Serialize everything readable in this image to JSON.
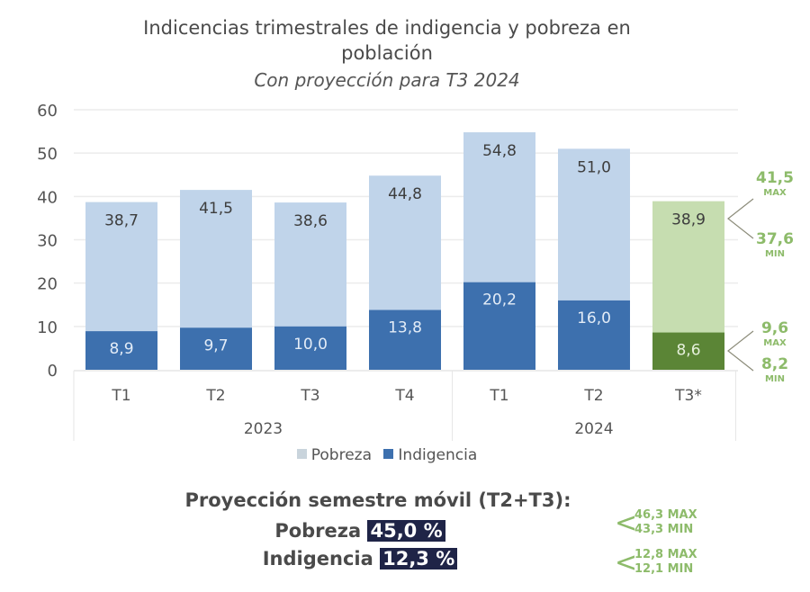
{
  "title": {
    "line1": "Indicencias trimestrales de indigencia y pobreza en",
    "line2": "población",
    "subtitle": "Con proyección para T3 2024"
  },
  "colors": {
    "pobreza": "#c0d4ea",
    "indigencia": "#3d70ae",
    "pobreza_projection": "#c6ddb0",
    "indigencia_projection": "#5b8536",
    "range_text": "#8dbb6a",
    "highlight_bg": "#1f2447"
  },
  "chart_data": {
    "type": "bar",
    "title": "Indicencias trimestrales de indigencia y pobreza en población",
    "subtitle": "Con proyección para T3 2024",
    "xlabel": "",
    "ylabel": "",
    "ylim": [
      0,
      60
    ],
    "yticks": [
      0,
      10,
      20,
      30,
      40,
      50,
      60
    ],
    "grid": true,
    "legend_position": "bottom",
    "categories": [
      "T1",
      "T2",
      "T3",
      "T4",
      "T1",
      "T2",
      "T3*"
    ],
    "groups": [
      {
        "label": "2023",
        "count": 4
      },
      {
        "label": "2024",
        "count": 3
      }
    ],
    "series": [
      {
        "name": "Pobreza",
        "values": [
          38.7,
          41.5,
          38.6,
          44.8,
          54.8,
          51.0,
          38.9
        ],
        "labels": [
          "38,7",
          "41,5",
          "38,6",
          "44,8",
          "54,8",
          "51,0",
          "38,9"
        ]
      },
      {
        "name": "Indigencia",
        "values": [
          8.9,
          9.7,
          10.0,
          13.8,
          20.2,
          16.0,
          8.6
        ],
        "labels": [
          "8,9",
          "9,7",
          "10,0",
          "13,8",
          "20,2",
          "16,0",
          "8,6"
        ]
      }
    ],
    "projected_index": 6,
    "projection_ranges": {
      "pobreza": {
        "max": 41.5,
        "max_label": "41,5",
        "min": 37.6,
        "min_label": "37,6"
      },
      "indigencia": {
        "max": 9.6,
        "max_label": "9,6",
        "min": 8.2,
        "min_label": "8,2"
      }
    },
    "range_max_word": "MAX",
    "range_min_word": "MIN"
  },
  "legend": {
    "pobreza": "Pobreza",
    "indigencia": "Indigencia"
  },
  "summary": {
    "heading": "Proyección semestre móvil (T2+T3):",
    "pobreza_label": "Pobreza",
    "pobreza_value": "45,0 %",
    "pobreza_max": "46,3 MAX",
    "pobreza_min": "43,3 MIN",
    "indigencia_label": "Indigencia",
    "indigencia_value": "12,3 %",
    "indigencia_max": "12,8 MAX",
    "indigencia_min": "12,1 MIN"
  }
}
